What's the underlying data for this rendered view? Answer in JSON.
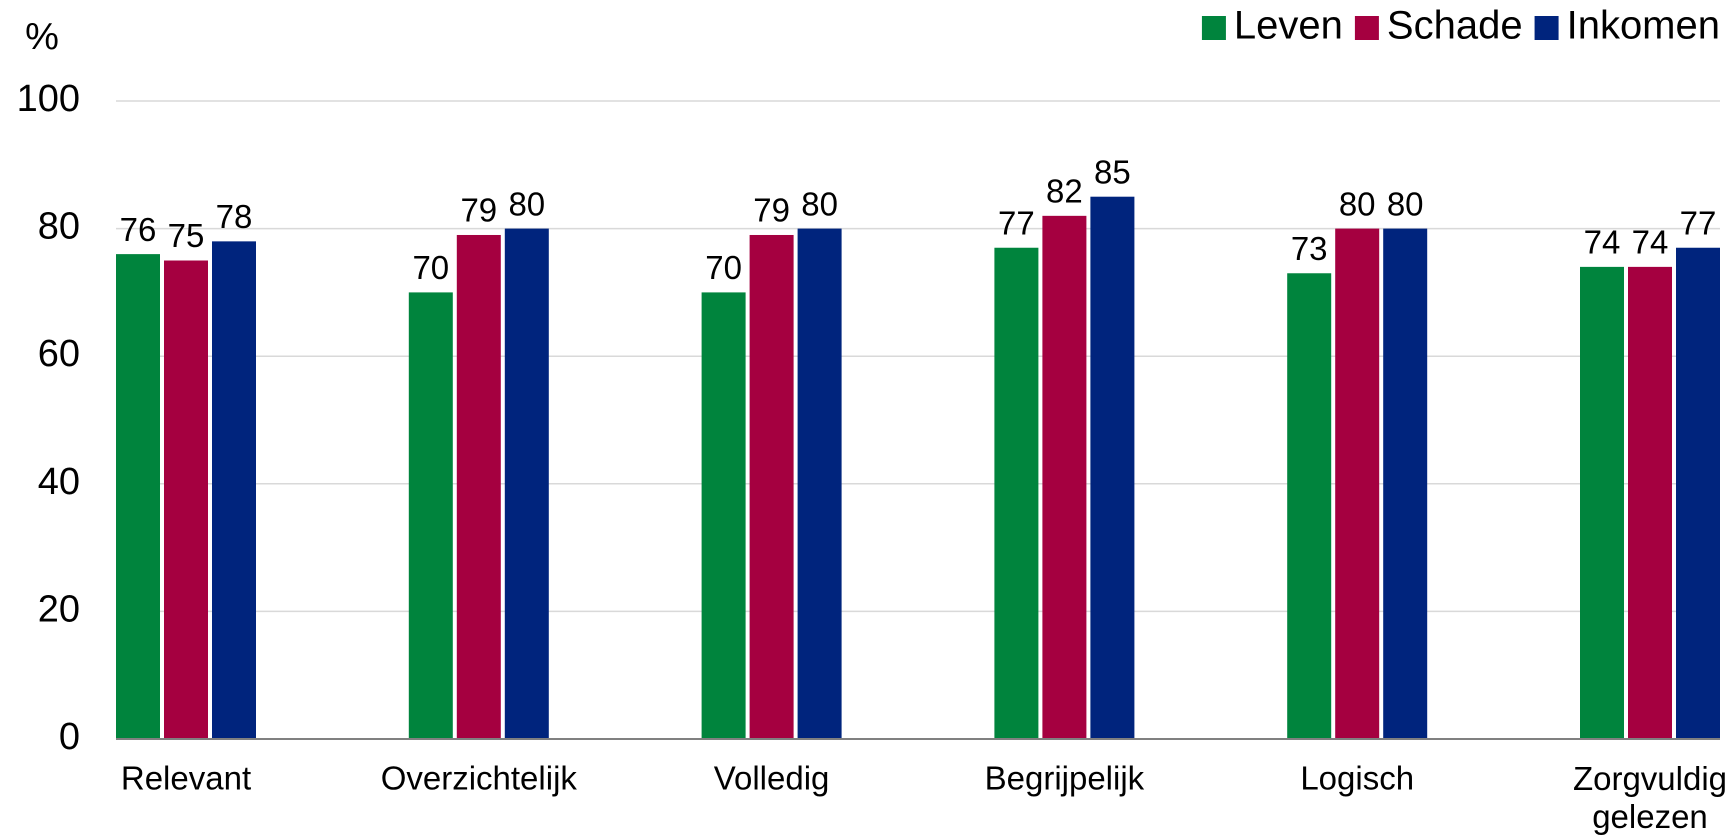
{
  "chart_data": {
    "type": "bar",
    "y_label": "%",
    "categories": [
      "Relevant",
      "Overzichtelijk",
      "Volledig",
      "Begrijpelijk",
      "Logisch",
      "Zorgvuldig gelezen"
    ],
    "series": [
      {
        "name": "Leven",
        "color": "#00843d",
        "values": [
          76,
          70,
          70,
          77,
          73,
          74
        ]
      },
      {
        "name": "Schade",
        "color": "#a50040",
        "values": [
          75,
          79,
          79,
          82,
          80,
          74
        ]
      },
      {
        "name": "Inkomen",
        "color": "#00247d",
        "values": [
          78,
          80,
          80,
          85,
          80,
          77
        ]
      }
    ],
    "ylim": [
      0,
      100
    ],
    "yticks": [
      0,
      20,
      40,
      60,
      80,
      100
    ],
    "grid": true,
    "legend": "top-right"
  }
}
